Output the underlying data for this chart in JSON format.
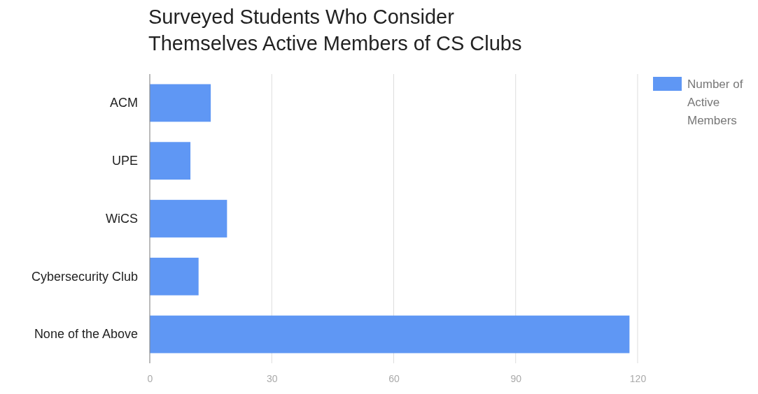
{
  "chart_data": {
    "type": "bar",
    "orientation": "horizontal",
    "title": "Surveyed Students Who Consider Themselves Active Members of CS Clubs",
    "categories": [
      "ACM",
      "UPE",
      "WiCS",
      "Cybersecurity Club",
      "None of the Above"
    ],
    "series": [
      {
        "name": "Number of Active Members",
        "color": "#5f97f4",
        "values": [
          15,
          10,
          19,
          12,
          118
        ]
      }
    ],
    "xlim": [
      0,
      120
    ],
    "xticks": [
      0,
      30,
      60,
      90,
      120
    ],
    "grid": "x",
    "legend": "top right"
  }
}
